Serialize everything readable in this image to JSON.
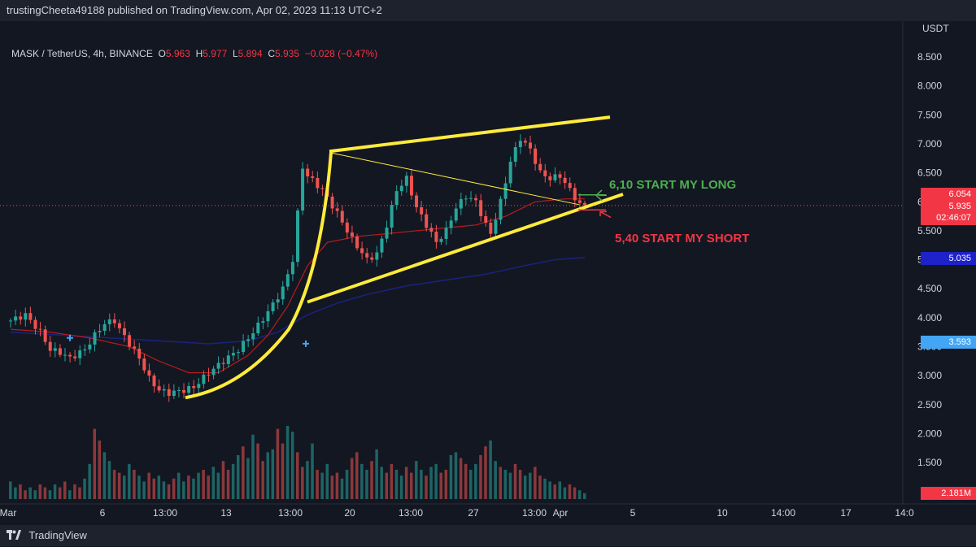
{
  "header": {
    "published": "trustingCheeta49188 published on TradingView.com, Apr 02, 2023 11:13 UTC+2"
  },
  "legend": {
    "symbol": "MASK / TetherUS, 4h, BINANCE",
    "o_label": "O",
    "o_value": "5.963",
    "h_label": "H",
    "h_value": "5.977",
    "l_label": "L",
    "l_value": "5.894",
    "c_label": "C",
    "c_value": "5.935",
    "change": "−0.028 (−0.47%)"
  },
  "price_axis": {
    "currency": "USDT",
    "ticks": [
      "8.500",
      "8.000",
      "7.500",
      "7.000",
      "6.500",
      "6.000",
      "5.500",
      "5.000",
      "4.500",
      "4.000",
      "3.500",
      "3.000",
      "2.500",
      "2.000",
      "1.500"
    ]
  },
  "time_axis": {
    "ticks": [
      "Mar",
      "6",
      "13:00",
      "13",
      "13:00",
      "20",
      "13:00",
      "27",
      "13:00",
      "Apr",
      "5",
      "10",
      "14:00",
      "17",
      "14:0"
    ]
  },
  "price_tags": {
    "red_level": "6.054",
    "last_price": "5.935",
    "countdown": "02:46:07",
    "ma_blue": "5.035",
    "ma_light_blue": "3.593",
    "volume": "2.181M"
  },
  "annotations": {
    "long": "6,10 START MY LONG",
    "short": "5,40 START MY SHORT"
  },
  "footer": {
    "brand": "TradingView"
  },
  "colors": {
    "background": "#131722",
    "up": "#26a69a",
    "down": "#ef5350",
    "trendline": "#ffeb3b",
    "ma_red": "#b71c1c",
    "ma_navy": "#1a237e",
    "long_text": "#4caf50",
    "short_text": "#f23645"
  },
  "chart_data": {
    "type": "candlestick",
    "ylim": [
      1.2,
      8.9
    ],
    "price_path": [
      [
        0,
        3.95
      ],
      [
        3,
        4.05
      ],
      [
        6,
        3.75
      ],
      [
        8,
        3.45
      ],
      [
        10,
        3.4
      ],
      [
        12,
        3.3
      ],
      [
        15,
        3.45
      ],
      [
        17,
        3.7
      ],
      [
        19,
        3.9
      ],
      [
        21,
        3.95
      ],
      [
        22,
        3.8
      ],
      [
        24,
        3.55
      ],
      [
        26,
        3.3
      ],
      [
        28,
        2.95
      ],
      [
        30,
        2.75
      ],
      [
        32,
        2.7
      ],
      [
        35,
        2.75
      ],
      [
        37,
        2.8
      ],
      [
        40,
        3.05
      ],
      [
        43,
        3.25
      ],
      [
        46,
        3.45
      ],
      [
        49,
        3.75
      ],
      [
        52,
        4.1
      ],
      [
        55,
        4.5
      ],
      [
        57,
        5.0
      ],
      [
        58,
        5.8
      ],
      [
        59,
        6.6
      ],
      [
        60,
        6.45
      ],
      [
        63,
        6.2
      ],
      [
        66,
        5.8
      ],
      [
        69,
        5.35
      ],
      [
        72,
        5.0
      ],
      [
        74,
        5.1
      ],
      [
        76,
        5.6
      ],
      [
        78,
        6.2
      ],
      [
        80,
        6.4
      ],
      [
        82,
        5.9
      ],
      [
        84,
        5.6
      ],
      [
        86,
        5.3
      ],
      [
        88,
        5.5
      ],
      [
        90,
        5.9
      ],
      [
        92,
        6.1
      ],
      [
        94,
        6.0
      ],
      [
        96,
        5.6
      ],
      [
        97,
        5.45
      ],
      [
        99,
        6.0
      ],
      [
        101,
        6.7
      ],
      [
        103,
        7.1
      ],
      [
        105,
        6.9
      ],
      [
        107,
        6.5
      ],
      [
        109,
        6.4
      ],
      [
        111,
        6.45
      ],
      [
        113,
        6.2
      ],
      [
        115,
        5.95
      ],
      [
        116,
        5.93
      ]
    ],
    "ma_red_path": [
      [
        0,
        3.8
      ],
      [
        8,
        3.75
      ],
      [
        16,
        3.65
      ],
      [
        24,
        3.5
      ],
      [
        30,
        3.25
      ],
      [
        36,
        3.05
      ],
      [
        42,
        3.05
      ],
      [
        48,
        3.35
      ],
      [
        52,
        3.7
      ],
      [
        56,
        4.2
      ],
      [
        60,
        4.9
      ],
      [
        64,
        5.3
      ],
      [
        70,
        5.4
      ],
      [
        76,
        5.45
      ],
      [
        82,
        5.5
      ],
      [
        88,
        5.55
      ],
      [
        94,
        5.6
      ],
      [
        100,
        5.75
      ],
      [
        106,
        6.0
      ],
      [
        112,
        6.05
      ],
      [
        116,
        6.05
      ]
    ],
    "ma_navy_path": [
      [
        0,
        3.75
      ],
      [
        10,
        3.7
      ],
      [
        20,
        3.65
      ],
      [
        30,
        3.6
      ],
      [
        40,
        3.55
      ],
      [
        48,
        3.6
      ],
      [
        54,
        3.75
      ],
      [
        60,
        4.05
      ],
      [
        66,
        4.25
      ],
      [
        72,
        4.4
      ],
      [
        80,
        4.55
      ],
      [
        88,
        4.65
      ],
      [
        96,
        4.75
      ],
      [
        104,
        4.9
      ],
      [
        110,
        5.0
      ],
      [
        116,
        5.04
      ]
    ],
    "volume_values": [
      0.6,
      0.4,
      0.5,
      0.3,
      0.4,
      0.3,
      0.5,
      0.4,
      0.3,
      0.5,
      0.4,
      0.6,
      0.3,
      0.5,
      0.4,
      0.7,
      1.2,
      2.4,
      2.0,
      1.6,
      1.3,
      1.0,
      0.9,
      0.8,
      1.2,
      1.0,
      0.8,
      0.6,
      0.9,
      0.7,
      0.8,
      0.6,
      0.5,
      0.7,
      0.9,
      0.6,
      0.8,
      0.7,
      0.9,
      1.0,
      0.8,
      1.1,
      0.9,
      1.3,
      1.0,
      1.2,
      1.5,
      1.8,
      1.4,
      2.2,
      1.9,
      1.3,
      1.6,
      1.7,
      2.4,
      1.9,
      2.5,
      2.3,
      1.6,
      1.1,
      1.3,
      1.9,
      1.0,
      0.9,
      1.2,
      0.8,
      0.9,
      0.7,
      1.0,
      1.4,
      1.6,
      1.2,
      1.0,
      1.3,
      1.7,
      1.1,
      0.9,
      1.2,
      1.0,
      0.8,
      1.1,
      0.9,
      1.3,
      1.0,
      0.8,
      1.1,
      1.2,
      0.9,
      1.0,
      1.5,
      1.6,
      1.4,
      1.2,
      1.0,
      1.2,
      1.5,
      1.8,
      2.0,
      1.3,
      1.1,
      1.0,
      0.9,
      1.2,
      1.0,
      0.8,
      0.9,
      1.1,
      0.8,
      0.7,
      0.6,
      0.5,
      0.6,
      0.4,
      0.5,
      0.4,
      0.3,
      0.2
    ]
  }
}
